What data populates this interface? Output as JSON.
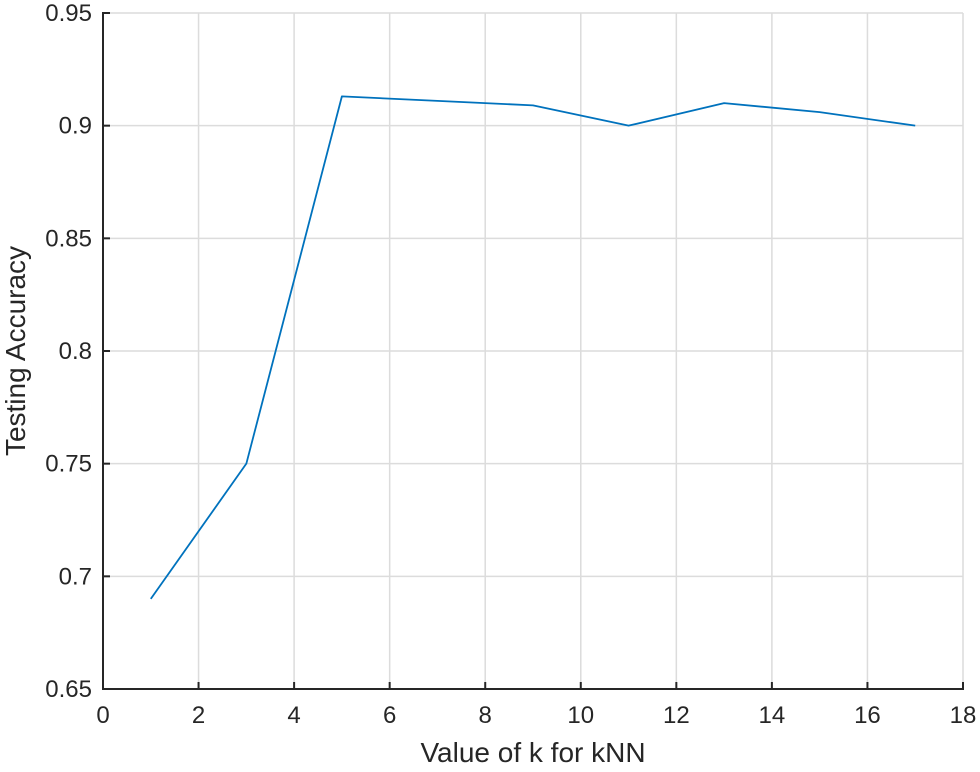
{
  "chart_data": {
    "type": "line",
    "title": "",
    "xlabel": "Value of k for kNN",
    "ylabel": "Testing Accuracy",
    "x": [
      1,
      3,
      5,
      7,
      9,
      11,
      13,
      15,
      17
    ],
    "series": [
      {
        "name": "Testing Accuracy",
        "values": [
          0.69,
          0.75,
          0.913,
          0.911,
          0.909,
          0.9,
          0.91,
          0.906,
          0.9
        ]
      }
    ],
    "xlim": [
      0,
      18
    ],
    "ylim": [
      0.65,
      0.95
    ],
    "xticks": {
      "values": [
        0,
        2,
        4,
        6,
        8,
        10,
        12,
        14,
        16,
        18
      ],
      "labels": [
        "0",
        "2",
        "4",
        "6",
        "8",
        "10",
        "12",
        "14",
        "16",
        "18"
      ]
    },
    "yticks": {
      "values": [
        0.65,
        0.7,
        0.75,
        0.8,
        0.85,
        0.9,
        0.95
      ],
      "labels": [
        "0.65",
        "0.7",
        "0.75",
        "0.8",
        "0.85",
        "0.9",
        "0.95"
      ]
    },
    "grid": true,
    "legend": "none",
    "colors": {
      "line": "#0072bd",
      "axis": "#262626",
      "grid": "#dcdcdc",
      "background": "#ffffff"
    }
  }
}
